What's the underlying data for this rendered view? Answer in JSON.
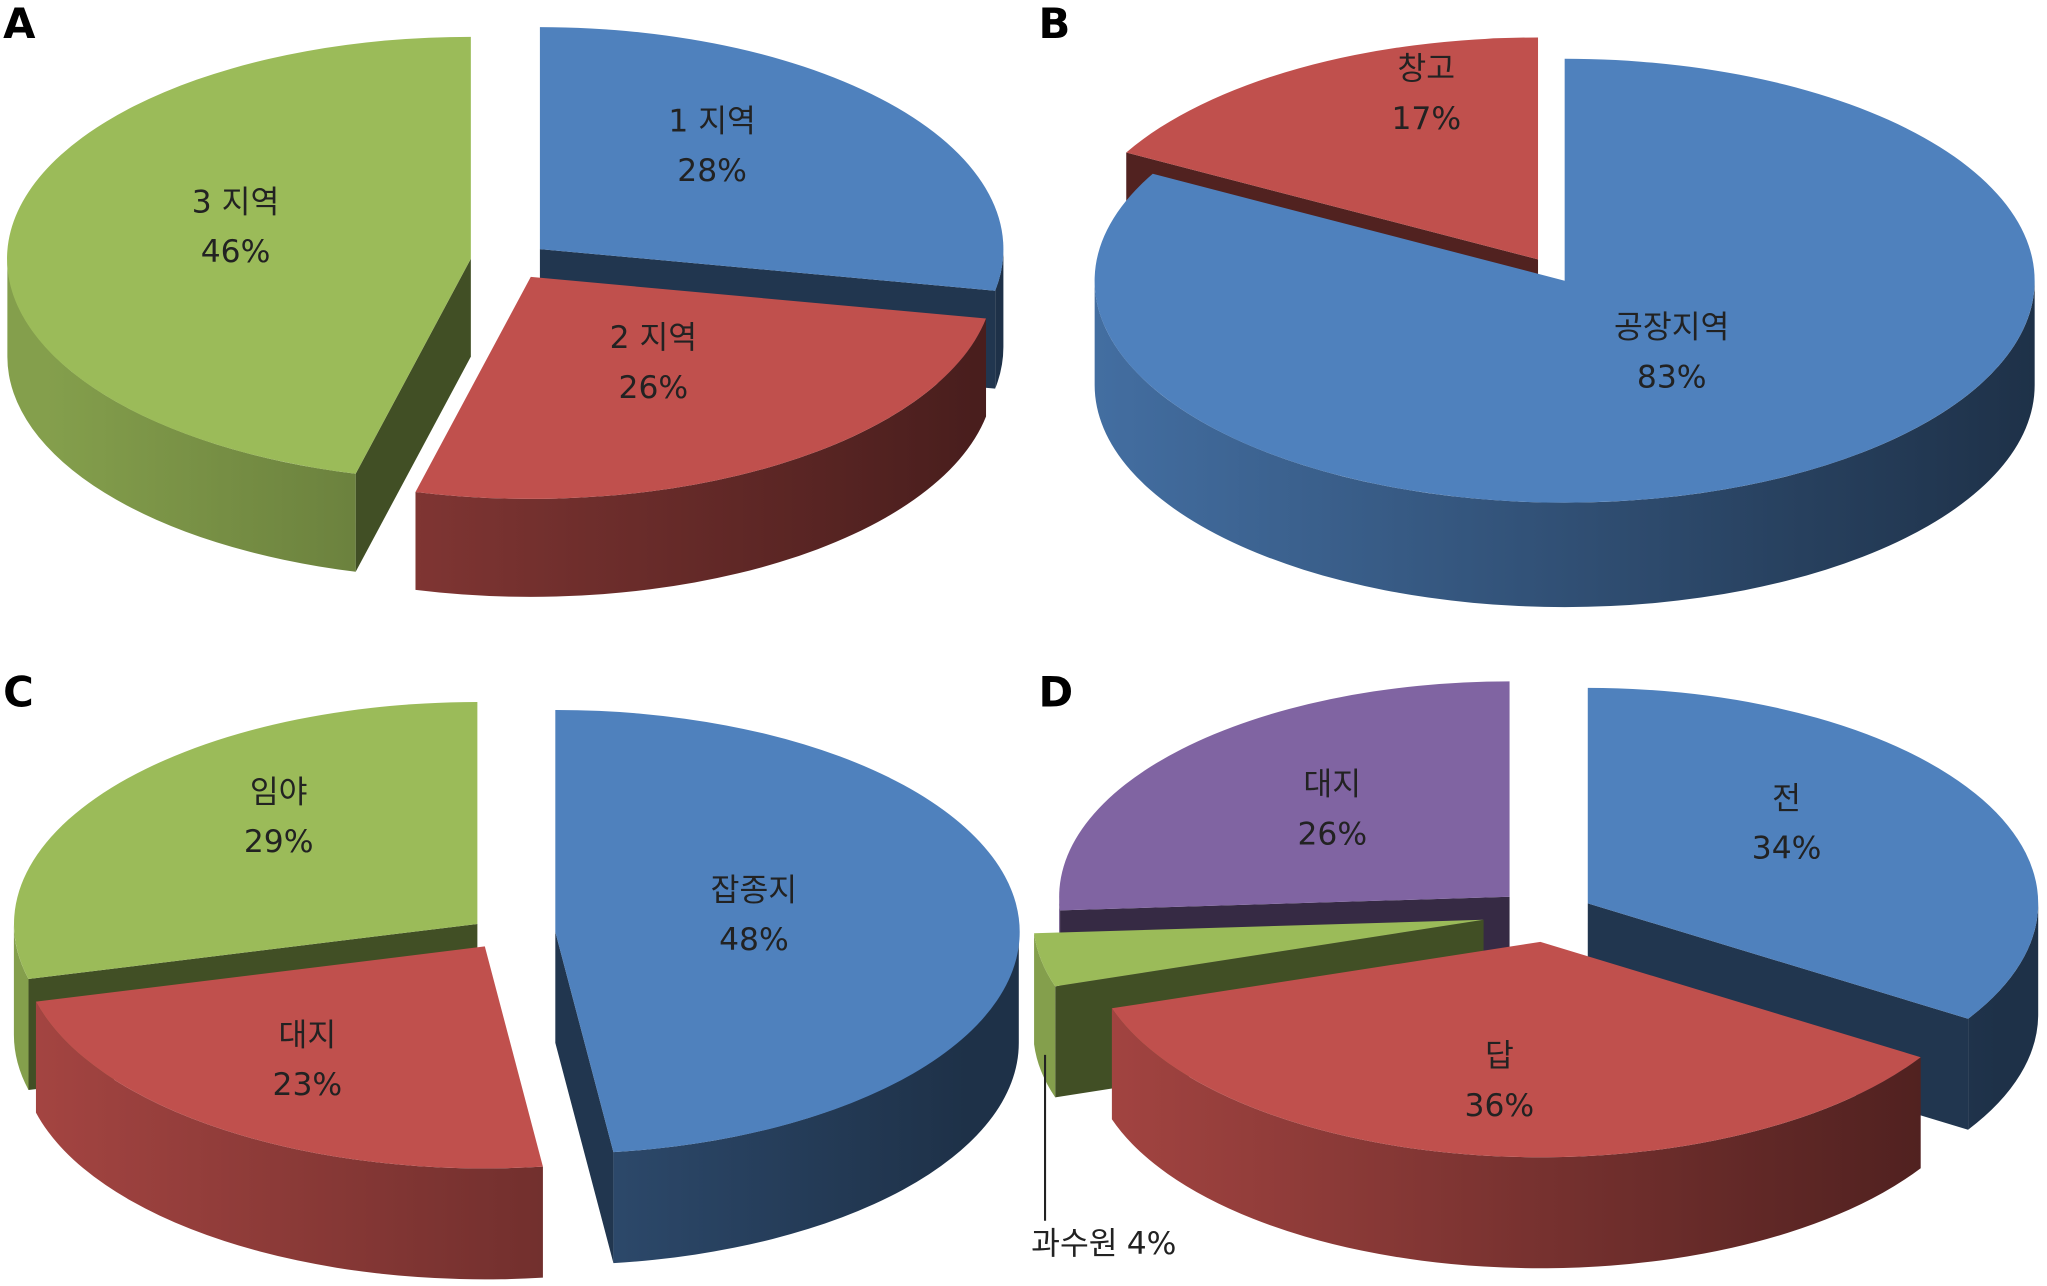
{
  "chart_data": [
    {
      "panel": "A",
      "type": "pie",
      "three_d": true,
      "exploded": true,
      "categories": [
        "1 지역",
        "2 지역",
        "3 지역"
      ],
      "values": [
        28,
        26,
        46
      ],
      "value_labels": [
        "28%",
        "26%",
        "46%"
      ],
      "colors": [
        "#4F81BD",
        "#C0504D",
        "#9BBB59"
      ]
    },
    {
      "panel": "B",
      "type": "pie",
      "three_d": true,
      "exploded": true,
      "categories": [
        "공장지역",
        "창고"
      ],
      "values": [
        83,
        17
      ],
      "value_labels": [
        "83%",
        "17%"
      ],
      "colors": [
        "#4F81BD",
        "#C0504D"
      ]
    },
    {
      "panel": "C",
      "type": "pie",
      "three_d": true,
      "exploded": true,
      "categories": [
        "잡종지",
        "대지",
        "임야"
      ],
      "values": [
        48,
        23,
        29
      ],
      "value_labels": [
        "48%",
        "23%",
        "29%"
      ],
      "colors": [
        "#4F81BD",
        "#C0504D",
        "#9BBB59"
      ]
    },
    {
      "panel": "D",
      "type": "pie",
      "three_d": true,
      "exploded": true,
      "categories": [
        "전",
        "답",
        "과수원",
        "대지"
      ],
      "values": [
        34,
        36,
        4,
        26
      ],
      "value_labels": [
        "34%",
        "36%",
        "4%",
        "26%"
      ],
      "colors": [
        "#4F81BD",
        "#C0504D",
        "#9BBB59",
        "#8064A2"
      ]
    }
  ]
}
